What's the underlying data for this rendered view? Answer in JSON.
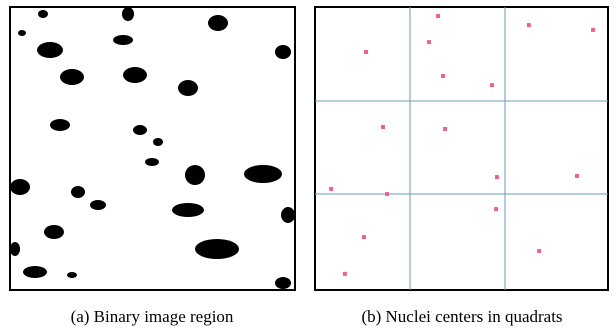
{
  "figures": [
    {
      "caption": "(a) Binary image region"
    },
    {
      "caption": "(b) Nuclei centers in quadrats"
    }
  ],
  "chart_data": {
    "type": "scatter",
    "x": [
      42.0,
      73.0,
      94.9,
      38.9,
      17.4,
      43.7,
      60.4,
      23.2,
      44.4,
      62.1,
      89.4,
      5.5,
      24.6,
      61.8,
      16.7,
      76.5,
      10.2
    ],
    "y": [
      96.8,
      93.6,
      91.9,
      87.6,
      84.1,
      75.6,
      72.4,
      57.6,
      56.9,
      39.9,
      40.3,
      35.7,
      33.9,
      28.6,
      18.7,
      13.8,
      5.7
    ],
    "color": "#f0608a",
    "xlim": [
      0,
      100
    ],
    "ylim": [
      0,
      100
    ]
  }
}
